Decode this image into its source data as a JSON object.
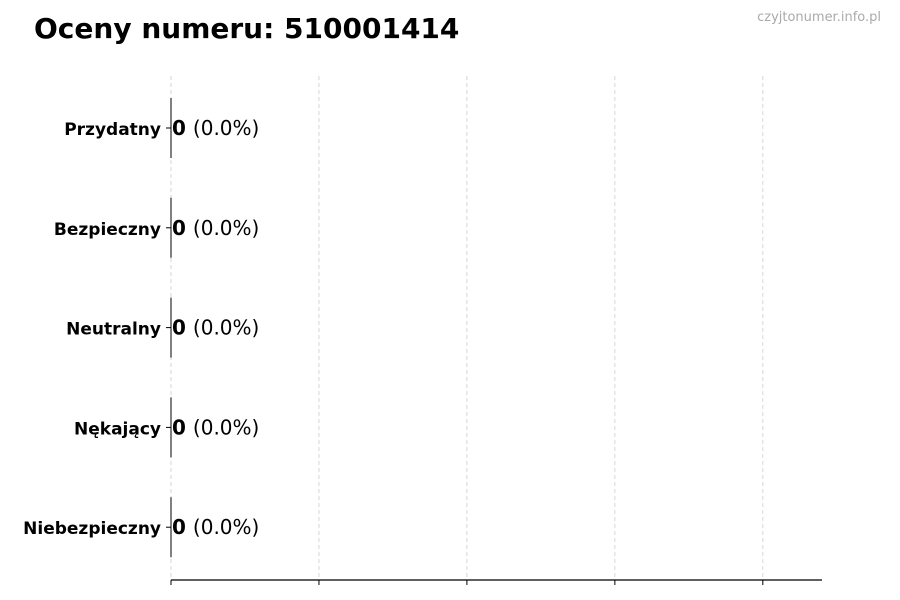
{
  "title": "Oceny numeru: 510001414",
  "watermark": "czyjtonumer.info.pl",
  "chart_data": {
    "type": "bar",
    "orientation": "horizontal",
    "title": "Oceny numeru: 510001414",
    "categories": [
      "Przydatny",
      "Bezpieczny",
      "Neutralny",
      "Nękający",
      "Niebezpieczny"
    ],
    "values": [
      0,
      0,
      0,
      0,
      0
    ],
    "data_labels": [
      {
        "count": "0",
        "percent": "(0.0%)"
      },
      {
        "count": "0",
        "percent": "(0.0%)"
      },
      {
        "count": "0",
        "percent": "(0.0%)"
      },
      {
        "count": "0",
        "percent": "(0.0%)"
      },
      {
        "count": "0",
        "percent": "(0.0%)"
      }
    ],
    "xlabel": "",
    "ylabel": "",
    "xlim": [
      0,
      4.4
    ],
    "x_gridlines": [
      0,
      1,
      2,
      3,
      4
    ],
    "x_tick_labels_shown": false,
    "grid": "x, dashed",
    "colors": {
      "bar_edge": "#000000",
      "grid": "#cccccc",
      "watermark": "#aaaaaa"
    }
  }
}
